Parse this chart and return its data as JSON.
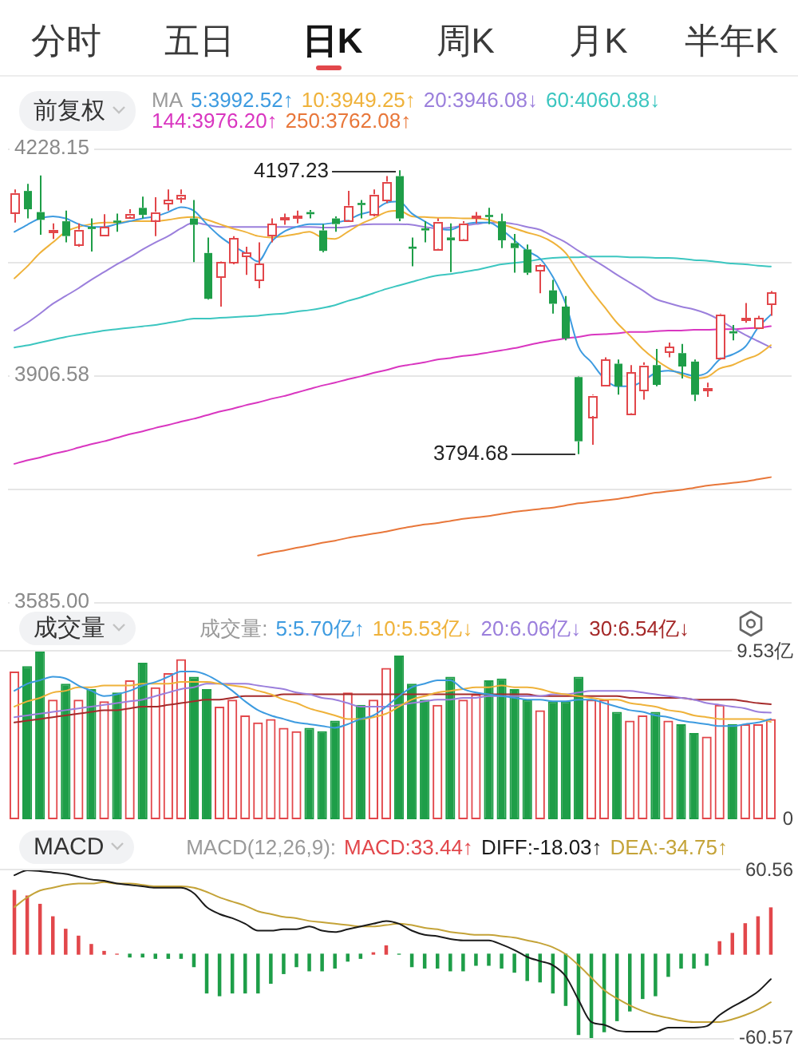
{
  "chart_data": [
    {
      "type": "other",
      "annotations": [
        "分时",
        "五日",
        "日K",
        "周K",
        "月K",
        "半年K"
      ]
    },
    {
      "type": "candlestick",
      "annotations": [
        "前复权",
        "4197.23",
        "3794.68"
      ],
      "legend_title": "MA",
      "legend": "top left",
      "tick_labels": "y",
      "grid": "y",
      "marker": "none",
      "categories": [
        null,
        null,
        null,
        null,
        null,
        null,
        null,
        null,
        null,
        null,
        null,
        null,
        null,
        null,
        null,
        null,
        null,
        null,
        null,
        null,
        null,
        null,
        null,
        null,
        null,
        null,
        null,
        null,
        null,
        null,
        null,
        null,
        null,
        null,
        null,
        null,
        null,
        null,
        null,
        null,
        null,
        null,
        null,
        null,
        null,
        null,
        null,
        null,
        null,
        null,
        null,
        null,
        null,
        null,
        null,
        null,
        null,
        null,
        null,
        null
      ],
      "ohlc": [
        [
          4138,
          4170,
          4123,
          4165
        ],
        [
          4168,
          4178,
          4129,
          4142
        ],
        [
          4138,
          4190,
          4106,
          4127
        ],
        [
          4110,
          4122,
          4100,
          4113
        ],
        [
          4125,
          4140,
          4095,
          4104
        ],
        [
          4093,
          4122,
          4089,
          4113
        ],
        [
          4117,
          4129,
          4082,
          4114
        ],
        [
          4106,
          4135,
          4104,
          4117
        ],
        [
          4126,
          4136,
          4110,
          4123
        ],
        [
          4132,
          4142,
          4129,
          4136
        ],
        [
          4144,
          4160,
          4129,
          4134
        ],
        [
          4127,
          4159,
          4104,
          4138
        ],
        [
          4151,
          4170,
          4140,
          4155
        ],
        [
          4159,
          4170,
          4151,
          4163
        ],
        [
          4129,
          4155,
          4067,
          4120
        ],
        [
          4080,
          4102,
          4014,
          4015
        ],
        [
          4046,
          4068,
          4004,
          4067
        ],
        [
          4067,
          4104,
          4064,
          4101
        ],
        [
          4076,
          4089,
          4049,
          4080
        ],
        [
          4042,
          4095,
          4030,
          4064
        ],
        [
          4106,
          4129,
          4095,
          4121
        ],
        [
          4127,
          4136,
          4120,
          4130
        ],
        [
          4129,
          4140,
          4122,
          4132
        ],
        [
          4138,
          4141,
          4129,
          4135
        ],
        [
          4112,
          4121,
          4081,
          4083
        ],
        [
          4129,
          4132,
          4110,
          4121
        ],
        [
          4127,
          4168,
          4125,
          4147
        ],
        [
          4151,
          4155,
          4129,
          4148
        ],
        [
          4136,
          4170,
          4132,
          4163
        ],
        [
          4155,
          4189,
          4151,
          4181
        ],
        [
          4189,
          4197.23,
          4125,
          4129
        ],
        [
          4089,
          4102,
          4061,
          4086
        ],
        [
          4115,
          4125,
          4095,
          4112
        ],
        [
          4087,
          4129,
          4086,
          4125
        ],
        [
          4102,
          4122,
          4053,
          4098
        ],
        [
          4100,
          4125,
          4098,
          4122
        ],
        [
          4129,
          4138,
          4122,
          4132
        ],
        [
          4134,
          4144,
          4121,
          4131
        ],
        [
          4125,
          4136,
          4087,
          4098
        ],
        [
          4094,
          4107,
          4052,
          4087
        ],
        [
          4085,
          4092,
          4049,
          4052
        ],
        [
          4055,
          4064,
          4023,
          4062
        ],
        [
          4027,
          4042,
          3994,
          4008
        ],
        [
          4004,
          4019,
          3956,
          3959
        ],
        [
          3904,
          3905,
          3794.68,
          3813
        ],
        [
          3849,
          3879,
          3808,
          3878
        ],
        [
          3893,
          3932,
          3891,
          3929
        ],
        [
          3923,
          3929,
          3879,
          3891
        ],
        [
          3853,
          3921,
          3852,
          3911
        ],
        [
          3886,
          3925,
          3872,
          3921
        ],
        [
          3921,
          3944,
          3891,
          3893
        ],
        [
          3941,
          3953,
          3932,
          3947
        ],
        [
          3938,
          3951,
          3902,
          3919
        ],
        [
          3926,
          3929,
          3870,
          3879
        ],
        [
          3886,
          3896,
          3876,
          3889
        ],
        [
          3932,
          3994,
          3929,
          3993
        ],
        [
          3969,
          3978,
          3956,
          3966
        ],
        [
          3984,
          4009,
          3981,
          3987
        ],
        [
          3974,
          3991,
          3972,
          3987
        ],
        [
          4008,
          4026,
          3991,
          4024
        ]
      ],
      "series": [
        {
          "name": "5:3992.52↑",
          "type": "line",
          "color": "#3d9be0",
          "values": [
            4110,
            4120,
            4129,
            4132,
            4129,
            4121,
            4117,
            4117,
            4121,
            4125,
            4129,
            4132,
            4138,
            4145,
            4140,
            4121,
            4104,
            4091,
            4080,
            4068,
            4095,
            4110,
            4117,
            4121,
            4121,
            4123,
            4127,
            4135,
            4140,
            4151,
            4153,
            4136,
            4125,
            4115,
            4113,
            4120,
            4123,
            4123,
            4113,
            4098,
            4083,
            4072,
            4046,
            4008,
            3947,
            3925,
            3902,
            3891,
            3891,
            3898,
            3910,
            3913,
            3910,
            3906,
            3910,
            3929,
            3936,
            3947,
            3974,
            3992.52
          ]
        },
        {
          "name": "10:3949.25↑",
          "type": "line",
          "color": "#efb23a",
          "values": [
            4044,
            4061,
            4080,
            4095,
            4110,
            4117,
            4121,
            4123,
            4123,
            4125,
            4125,
            4125,
            4127,
            4130,
            4131,
            4127,
            4121,
            4115,
            4110,
            4104,
            4102,
            4104,
            4107,
            4110,
            4102,
            4100,
            4110,
            4121,
            4129,
            4138,
            4140,
            4132,
            4131,
            4130,
            4130,
            4129,
            4129,
            4127,
            4121,
            4115,
            4109,
            4104,
            4095,
            4080,
            4053,
            4027,
            4004,
            3981,
            3963,
            3944,
            3929,
            3917,
            3908,
            3902,
            3904,
            3916,
            3921,
            3929,
            3936,
            3949.25
          ]
        },
        {
          "name": "20:3946.08↓",
          "type": "line",
          "color": "#9b7fdc",
          "values": [
            3970,
            3981,
            3994,
            4008,
            4019,
            4030,
            4042,
            4053,
            4064,
            4074,
            4085,
            4095,
            4104,
            4115,
            4123,
            4120,
            4117,
            4117,
            4117,
            4117,
            4117,
            4117,
            4117,
            4117,
            4116,
            4116,
            4117,
            4120,
            4121,
            4121,
            4121,
            4120,
            4117,
            4115,
            4116,
            4119,
            4121,
            4123,
            4123,
            4121,
            4117,
            4113,
            4104,
            4095,
            4083,
            4072,
            4061,
            4049,
            4038,
            4027,
            4015,
            4009,
            4004,
            4000,
            3994,
            3985,
            3974,
            3964,
            3955,
            3946.08
          ]
        },
        {
          "name": "60:4060.88↓",
          "type": "line",
          "color": "#3cc6c0",
          "values": [
            3946,
            3949,
            3953,
            3957,
            3961,
            3964,
            3967,
            3970,
            3972,
            3974,
            3976,
            3978,
            3981,
            3984,
            3987,
            3987,
            3988,
            3989,
            3990,
            3991,
            3993,
            3994,
            3997,
            3999,
            4002,
            4006,
            4012,
            4017,
            4023,
            4029,
            4034,
            4039,
            4044,
            4048,
            4050,
            4053,
            4056,
            4060,
            4064,
            4066,
            4068,
            4071,
            4073,
            4074,
            4074,
            4075,
            4075,
            4075,
            4074,
            4074,
            4073,
            4073,
            4072,
            4070,
            4069,
            4067,
            4065,
            4064,
            4062,
            4060.88
          ]
        },
        {
          "name": "144:3976.20↑",
          "type": "line",
          "color": "#d936c0",
          "values": [
            3781,
            3786,
            3790,
            3795,
            3799,
            3804,
            3809,
            3813,
            3818,
            3823,
            3827,
            3832,
            3836,
            3841,
            3845,
            3850,
            3855,
            3859,
            3864,
            3868,
            3873,
            3877,
            3882,
            3887,
            3892,
            3896,
            3901,
            3905,
            3910,
            3914,
            3919,
            3922,
            3925,
            3929,
            3931,
            3934,
            3936,
            3939,
            3942,
            3945,
            3949,
            3953,
            3956,
            3959,
            3961,
            3964,
            3965,
            3966,
            3968,
            3968,
            3969,
            3970,
            3970,
            3971,
            3971,
            3972,
            3972,
            3973,
            3974,
            3976.2
          ]
        },
        {
          "name": "250:3762.08↑",
          "type": "line",
          "color": "#e8773a",
          "values": [
            null,
            null,
            null,
            null,
            null,
            null,
            null,
            null,
            null,
            null,
            null,
            null,
            null,
            null,
            null,
            null,
            null,
            null,
            null,
            3651,
            3655,
            3658,
            3662,
            3665,
            3669,
            3672,
            3676,
            3679,
            3682,
            3685,
            3689,
            3692,
            3695,
            3697,
            3700,
            3703,
            3705,
            3707,
            3710,
            3713,
            3715,
            3717,
            3719,
            3722,
            3725,
            3727,
            3729,
            3731,
            3734,
            3737,
            3740,
            3742,
            3744,
            3747,
            3750,
            3752,
            3754,
            3756,
            3759,
            3762.08
          ]
        }
      ],
      "ylim": [
        3585,
        4228.15
      ],
      "yticks": [
        4228.15,
        {
          "value": 4067.36,
          "label": null
        },
        3906.58,
        {
          "value": 3745.79,
          "label": null
        },
        {
          "value": 3585,
          "label": "3585.00"
        }
      ]
    },
    {
      "type": "bar",
      "annotations": [
        "成交量"
      ],
      "legend_title": "成交量:",
      "legend": "top right",
      "tick_labels": "y",
      "marker": "none",
      "categories": [
        null,
        null,
        null,
        null,
        null,
        null,
        null,
        null,
        null,
        null,
        null,
        null,
        null,
        null,
        null,
        null,
        null,
        null,
        null,
        null,
        null,
        null,
        null,
        null,
        null,
        null,
        null,
        null,
        null,
        null,
        null,
        null,
        null,
        null,
        null,
        null,
        null,
        null,
        null,
        null,
        null,
        null,
        null,
        null,
        null,
        null,
        null,
        null,
        null,
        null,
        null,
        null,
        null,
        null,
        null,
        null,
        null,
        null,
        null,
        null
      ],
      "series": [
        {
          "colors": [
            "#e2474b",
            "#1e9e48",
            "#1e9e48",
            "#e2474b",
            "#1e9e48",
            "#e2474b",
            "#1e9e48",
            "#e2474b",
            "#1e9e48",
            "#e2474b",
            "#1e9e48",
            "#e2474b",
            "#e2474b",
            "#e2474b",
            "#1e9e48",
            "#1e9e48",
            "#e2474b",
            "#e2474b",
            "#e2474b",
            "#e2474b",
            "#e2474b",
            "#e2474b",
            "#e2474b",
            "#1e9e48",
            "#1e9e48",
            "#1e9e48",
            "#e2474b",
            "#1e9e48",
            "#e2474b",
            "#e2474b",
            "#1e9e48",
            "#1e9e48",
            "#1e9e48",
            "#e2474b",
            "#1e9e48",
            "#e2474b",
            "#e2474b",
            "#1e9e48",
            "#1e9e48",
            "#1e9e48",
            "#1e9e48",
            "#e2474b",
            "#1e9e48",
            "#1e9e48",
            "#1e9e48",
            "#e2474b",
            "#e2474b",
            "#1e9e48",
            "#e2474b",
            "#e2474b",
            "#1e9e48",
            "#e2474b",
            "#1e9e48",
            "#1e9e48",
            "#e2474b",
            "#e2474b",
            "#1e9e48",
            "#e2474b",
            "#e2474b",
            "#e2474b"
          ],
          "values": [
            8.4,
            8.7,
            9.53,
            6.8,
            7.7,
            6.8,
            7.4,
            6.7,
            7.2,
            7.9,
            8.9,
            7.5,
            8.3,
            9.1,
            8.1,
            7.4,
            6.4,
            6.8,
            5.9,
            5.5,
            5.7,
            5.2,
            5.0,
            5.2,
            5.0,
            5.6,
            7.2,
            6.5,
            6.8,
            8.6,
            9.3,
            7.7,
            6.8,
            6.5,
            8.1,
            6.8,
            7.1,
            7.9,
            8.0,
            7.4,
            6.8,
            6.2,
            6.7,
            6.7,
            8.1,
            6.8,
            6.8,
            6.1,
            5.6,
            5.9,
            6.1,
            5.6,
            5.4,
            4.9,
            4.7,
            6.5,
            5.4,
            5.4,
            5.4,
            5.7
          ]
        },
        {
          "name": "5:5.70亿↑",
          "type": "line",
          "color": "#3d9be0",
          "values": [
            7.3,
            7.7,
            7.9,
            8.1,
            8.0,
            7.6,
            7.3,
            7.0,
            7.1,
            7.3,
            7.6,
            7.8,
            8.1,
            8.4,
            8.4,
            8.2,
            7.8,
            7.3,
            6.7,
            6.2,
            5.9,
            5.7,
            5.5,
            5.4,
            5.3,
            5.2,
            5.4,
            5.7,
            5.9,
            6.4,
            7.0,
            7.5,
            7.7,
            7.9,
            7.9,
            7.4,
            7.2,
            7.1,
            7.0,
            6.9,
            6.8,
            6.8,
            6.7,
            6.7,
            6.8,
            6.8,
            6.6,
            6.4,
            6.2,
            6.1,
            5.9,
            5.8,
            5.6,
            5.5,
            5.4,
            5.3,
            5.3,
            5.4,
            5.5,
            5.7
          ]
        },
        {
          "name": "10:5.53亿↓",
          "type": "line",
          "color": "#efb23a",
          "values": [
            6.4,
            6.7,
            6.9,
            7.2,
            7.3,
            7.5,
            7.5,
            7.6,
            7.6,
            7.6,
            7.7,
            7.7,
            7.7,
            7.8,
            7.8,
            7.8,
            7.7,
            7.6,
            7.5,
            7.3,
            7.1,
            6.8,
            6.6,
            6.3,
            6.1,
            5.9,
            5.7,
            5.7,
            5.8,
            6.0,
            6.4,
            6.8,
            7.0,
            7.2,
            7.3,
            7.4,
            7.5,
            7.5,
            7.6,
            7.5,
            7.5,
            7.4,
            7.2,
            7.1,
            7.0,
            6.9,
            6.8,
            6.8,
            6.6,
            6.5,
            6.4,
            6.2,
            6.1,
            5.9,
            5.8,
            5.7,
            5.7,
            5.7,
            5.7,
            5.53
          ]
        },
        {
          "name": "20:6.06亿↓",
          "type": "line",
          "color": "#9b7fdc",
          "values": [
            5.8,
            5.9,
            6.0,
            6.1,
            6.2,
            6.3,
            6.4,
            6.5,
            6.6,
            6.7,
            6.8,
            7.0,
            7.2,
            7.4,
            7.5,
            7.7,
            7.7,
            7.7,
            7.7,
            7.6,
            7.5,
            7.4,
            7.2,
            7.1,
            6.9,
            6.8,
            6.6,
            6.4,
            6.4,
            6.4,
            6.5,
            6.6,
            6.7,
            6.8,
            6.8,
            6.9,
            6.9,
            7.0,
            7.0,
            7.0,
            7.0,
            7.0,
            7.1,
            7.1,
            7.2,
            7.3,
            7.3,
            7.3,
            7.3,
            7.2,
            7.1,
            7.0,
            6.9,
            6.8,
            6.6,
            6.5,
            6.4,
            6.3,
            6.1,
            6.06
          ]
        },
        {
          "name": "30:6.54亿↓",
          "type": "line",
          "color": "#a52a2a",
          "values": [
            5.5,
            5.6,
            5.7,
            5.8,
            5.9,
            6.0,
            6.1,
            6.2,
            6.2,
            6.3,
            6.4,
            6.4,
            6.5,
            6.6,
            6.7,
            6.8,
            6.8,
            6.9,
            7.0,
            7.0,
            7.0,
            7.1,
            7.1,
            7.1,
            7.1,
            7.1,
            7.1,
            7.1,
            7.1,
            7.1,
            7.1,
            7.1,
            7.1,
            7.1,
            7.1,
            7.1,
            7.1,
            7.1,
            7.1,
            7.1,
            7.1,
            7.0,
            7.0,
            7.0,
            7.0,
            7.0,
            7.0,
            7.0,
            6.9,
            6.9,
            6.9,
            6.9,
            6.9,
            6.8,
            6.8,
            6.8,
            6.8,
            6.7,
            6.6,
            6.54
          ]
        }
      ],
      "ylim": [
        0,
        9.53
      ],
      "yticks": [
        {
          "value": 9.53,
          "label": "9.53亿"
        },
        0
      ]
    },
    {
      "type": "bar",
      "annotations": [
        "MACD"
      ],
      "legend_title": "MACD(12,26,9):",
      "legend": "top right",
      "tick_labels": "y",
      "marker": "none",
      "categories": [
        null,
        null,
        null,
        null,
        null,
        null,
        null,
        null,
        null,
        null,
        null,
        null,
        null,
        null,
        null,
        null,
        null,
        null,
        null,
        null,
        null,
        null,
        null,
        null,
        null,
        null,
        null,
        null,
        null,
        null,
        null,
        null,
        null,
        null,
        null,
        null,
        null,
        null,
        null,
        null,
        null,
        null,
        null,
        null,
        null,
        null,
        null,
        null,
        null,
        null,
        null,
        null,
        null,
        null,
        null,
        null,
        null,
        null,
        null,
        null
      ],
      "series": [
        {
          "name": "MACD:33.44↑",
          "color": "#e2474b",
          "colors": [
            "#e2474b",
            "#e2474b",
            "#e2474b",
            "#e2474b",
            "#e2474b",
            "#e2474b",
            "#e2474b",
            "#e2474b",
            "#e2474b",
            "#1e9e48",
            "#1e9e48",
            "#1e9e48",
            "#1e9e48",
            "#1e9e48",
            "#1e9e48",
            "#1e9e48",
            "#1e9e48",
            "#1e9e48",
            "#1e9e48",
            "#1e9e48",
            "#1e9e48",
            "#1e9e48",
            "#1e9e48",
            "#1e9e48",
            "#1e9e48",
            "#1e9e48",
            "#1e9e48",
            "#1e9e48",
            "#e2474b",
            "#e2474b",
            "#1e9e48",
            "#1e9e48",
            "#1e9e48",
            "#1e9e48",
            "#1e9e48",
            "#1e9e48",
            "#1e9e48",
            "#1e9e48",
            "#1e9e48",
            "#1e9e48",
            "#1e9e48",
            "#1e9e48",
            "#1e9e48",
            "#1e9e48",
            "#1e9e48",
            "#1e9e48",
            "#1e9e48",
            "#1e9e48",
            "#1e9e48",
            "#1e9e48",
            "#1e9e48",
            "#1e9e48",
            "#1e9e48",
            "#1e9e48",
            "#1e9e48",
            "#e2474b",
            "#e2474b",
            "#e2474b",
            "#e2474b",
            "#e2474b"
          ],
          "values": [
            46,
            42,
            36,
            27,
            18,
            13,
            7,
            2,
            0,
            -2,
            -2,
            -3,
            -3,
            -3,
            -9,
            -28,
            -30,
            -28,
            -28,
            -28,
            -21,
            -14,
            -9,
            -12,
            -12,
            -10,
            -5,
            -3,
            1,
            6,
            0,
            -9,
            -10,
            -10,
            -12,
            -12,
            -8,
            -8,
            -10,
            -13,
            -19,
            -20,
            -28,
            -37,
            -58,
            -60.57,
            -56,
            -48,
            -41,
            -32,
            -30,
            -16,
            -10,
            -10,
            -8,
            9,
            15,
            22,
            27,
            33.44
          ]
        },
        {
          "name": "DIFF:-18.03↑",
          "type": "line",
          "color": "#1a1a1a",
          "values": [
            57,
            60.56,
            60,
            59,
            58,
            56,
            54,
            53,
            51,
            50,
            49,
            48,
            48,
            48,
            44,
            34,
            29,
            26,
            22,
            17,
            17,
            18,
            18,
            20,
            17,
            16,
            18,
            20,
            22,
            24,
            22,
            17,
            14,
            13,
            11,
            10,
            10,
            10,
            7,
            3,
            -2,
            -5,
            -8,
            -16,
            -33,
            -49,
            -51,
            -55,
            -56,
            -56,
            -56,
            -53,
            -53,
            -53,
            -52,
            -44,
            -38,
            -33,
            -27,
            -18.03
          ]
        },
        {
          "name": "DEA:-34.75↑",
          "type": "line",
          "color": "#c4a338",
          "values": [
            34,
            41,
            46,
            48,
            50,
            51,
            51,
            52,
            51,
            51,
            50,
            49,
            49,
            49,
            48,
            45,
            41,
            38,
            35,
            31,
            29,
            27,
            26,
            24,
            23,
            22,
            21,
            20,
            20,
            21,
            22,
            21,
            19,
            18,
            16,
            15,
            14,
            14,
            13,
            12,
            10,
            8,
            5,
            0,
            -8,
            -17,
            -26,
            -32,
            -37,
            -41,
            -44,
            -46,
            -48,
            -49,
            -49,
            -49,
            -47,
            -44,
            -40,
            -34.75
          ]
        }
      ],
      "ylim": [
        -60.57,
        60.56
      ],
      "yticks": [
        60.56,
        -60.57
      ]
    }
  ]
}
